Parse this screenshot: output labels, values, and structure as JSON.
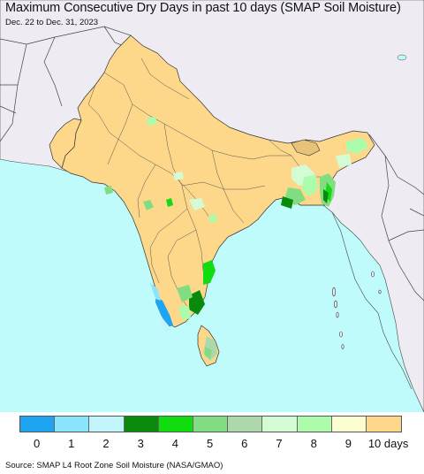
{
  "title": "Maximum Consecutive Dry Days in past 10 days (SMAP Soil Moisture)",
  "subtitle": "Dec. 22 to Dec. 31, 2023",
  "source": "Source: SMAP L4 Root Zone Soil Moisture (NASA/GMAO)",
  "colors": {
    "ocean": "#c0fbfb",
    "land_outside": "#eeecf2",
    "land_dry": "#fdd78a",
    "border": "#333333"
  },
  "legend": {
    "colors": [
      "#1ea4f0",
      "#8ae4fb",
      "#c4f4fb",
      "#0a8a0a",
      "#10dc10",
      "#82dc82",
      "#acd8ac",
      "#d4fcd4",
      "#acfcac",
      "#fdfdd2",
      "#fdd78a"
    ],
    "labels": [
      "0",
      "1",
      "2",
      "3",
      "4",
      "5",
      "6",
      "7",
      "8",
      "9",
      "10 days"
    ]
  }
}
